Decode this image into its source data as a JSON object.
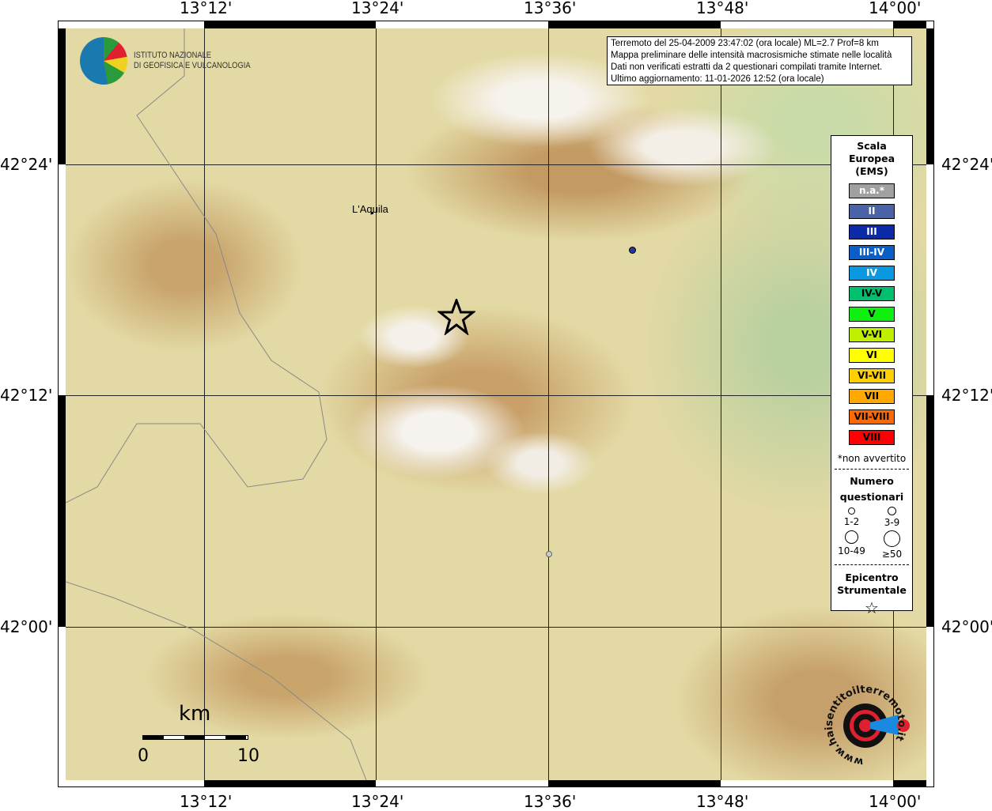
{
  "map": {
    "lon_ticks": [
      "13°12'",
      "13°24'",
      "13°36'",
      "13°48'",
      "14°00'"
    ],
    "lat_ticks": [
      "42°24'",
      "42°12'",
      "42°00'"
    ],
    "place_label": "L'Aquila",
    "epicenter_icon": "star-icon",
    "scale_bar": {
      "unit": "km",
      "start": "0",
      "end": "10"
    }
  },
  "logos": {
    "ingv": {
      "line1": "ISTITUTO NAZIONALE",
      "line2": "DI GEOFISICA E VULCANOLOGIA"
    },
    "hsit": {
      "text": "www.haisentitoilterremoto.it"
    }
  },
  "info": {
    "lines": [
      "Terremoto del 25-04-2009 23:47:02 (ora locale) ML=2.7 Prof=8 km",
      "Mappa preliminare delle intensità macrosismiche stimate nelle località",
      "Dati non verificati estratti da 2 questionari compilati tramite Internet.",
      "Ultimo aggiornamento: 11-01-2026 12:52 (ora locale)"
    ]
  },
  "legend": {
    "title": [
      "Scala",
      "Europea",
      "(EMS)"
    ],
    "scale": [
      {
        "label": "n.a.*",
        "color": "#a0a0a0",
        "text": "#fff"
      },
      {
        "label": "II",
        "color": "#4a62a8",
        "text": "#fff"
      },
      {
        "label": "III",
        "color": "#0a2aa8",
        "text": "#fff"
      },
      {
        "label": "III-IV",
        "color": "#0a5ec8",
        "text": "#fff"
      },
      {
        "label": "IV",
        "color": "#0a98e0",
        "text": "#fff"
      },
      {
        "label": "IV-V",
        "color": "#00c070",
        "text": "#000"
      },
      {
        "label": "V",
        "color": "#10f010",
        "text": "#000"
      },
      {
        "label": "V-VI",
        "color": "#c0f000",
        "text": "#000"
      },
      {
        "label": "VI",
        "color": "#ffff00",
        "text": "#000"
      },
      {
        "label": "VI-VII",
        "color": "#ffd000",
        "text": "#000"
      },
      {
        "label": "VII",
        "color": "#ffa800",
        "text": "#000"
      },
      {
        "label": "VII-VIII",
        "color": "#ff6800",
        "text": "#000"
      },
      {
        "label": "VIII",
        "color": "#ff0000",
        "text": "#000"
      }
    ],
    "note": "*non avvertito",
    "questionnaires_title": [
      "Numero",
      "questionari"
    ],
    "questionnaires": [
      "1-2",
      "3-9",
      "10-49",
      "≥50"
    ],
    "epicenter_title": [
      "Epicentro",
      "Strumentale"
    ]
  }
}
